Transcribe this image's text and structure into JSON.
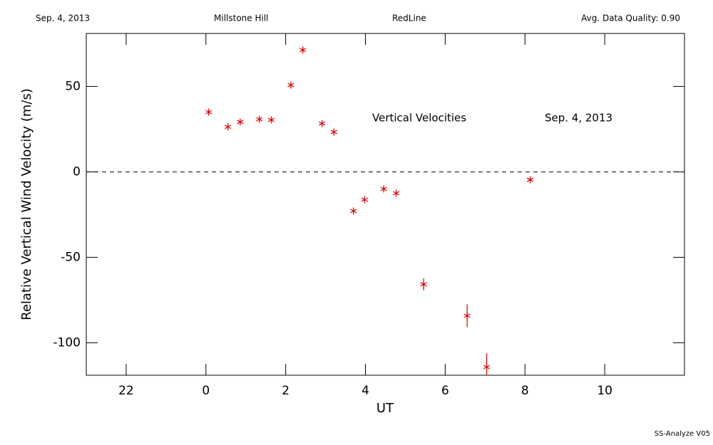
{
  "chart_data": {
    "type": "scatter",
    "header": [
      "Sep. 4, 2013",
      "Millstone Hill",
      "RedLine",
      "Avg. Data Quality: 0.90"
    ],
    "title": "Vertical Velocities",
    "annotation": "Sep. 4, 2013",
    "xlabel": "UT",
    "ylabel": "Relative Vertical Wind Velocity (m/s)",
    "footer": "SS-Analyze V05",
    "xlim": [
      -3,
      12
    ],
    "ylim": [
      -119,
      81
    ],
    "xticks": [
      {
        "value": -2,
        "label": "22"
      },
      0,
      2,
      4,
      6,
      8,
      10
    ],
    "yticks": [
      -100,
      -50,
      0,
      50
    ],
    "reference_line": 0,
    "series": [
      {
        "color": "#e00000",
        "x": [
          0.07,
          0.55,
          0.86,
          1.34,
          1.64,
          2.13,
          2.43,
          2.91,
          3.21,
          3.7,
          3.98,
          4.46,
          4.77,
          5.46,
          6.55,
          7.04,
          8.13
        ],
        "values": [
          35,
          26.3,
          29.2,
          30.8,
          30.4,
          50.8,
          71.3,
          28.3,
          23.3,
          -22.9,
          -16.3,
          -10,
          -12.5,
          -65.8,
          -84.2,
          -114.2,
          -4.6
        ],
        "errors": [
          1.5,
          1.5,
          1.5,
          1.5,
          1.5,
          1.5,
          1.5,
          1.5,
          1.5,
          1.5,
          1.5,
          1.5,
          1.5,
          3.5,
          6.7,
          8,
          1.5
        ]
      }
    ]
  }
}
